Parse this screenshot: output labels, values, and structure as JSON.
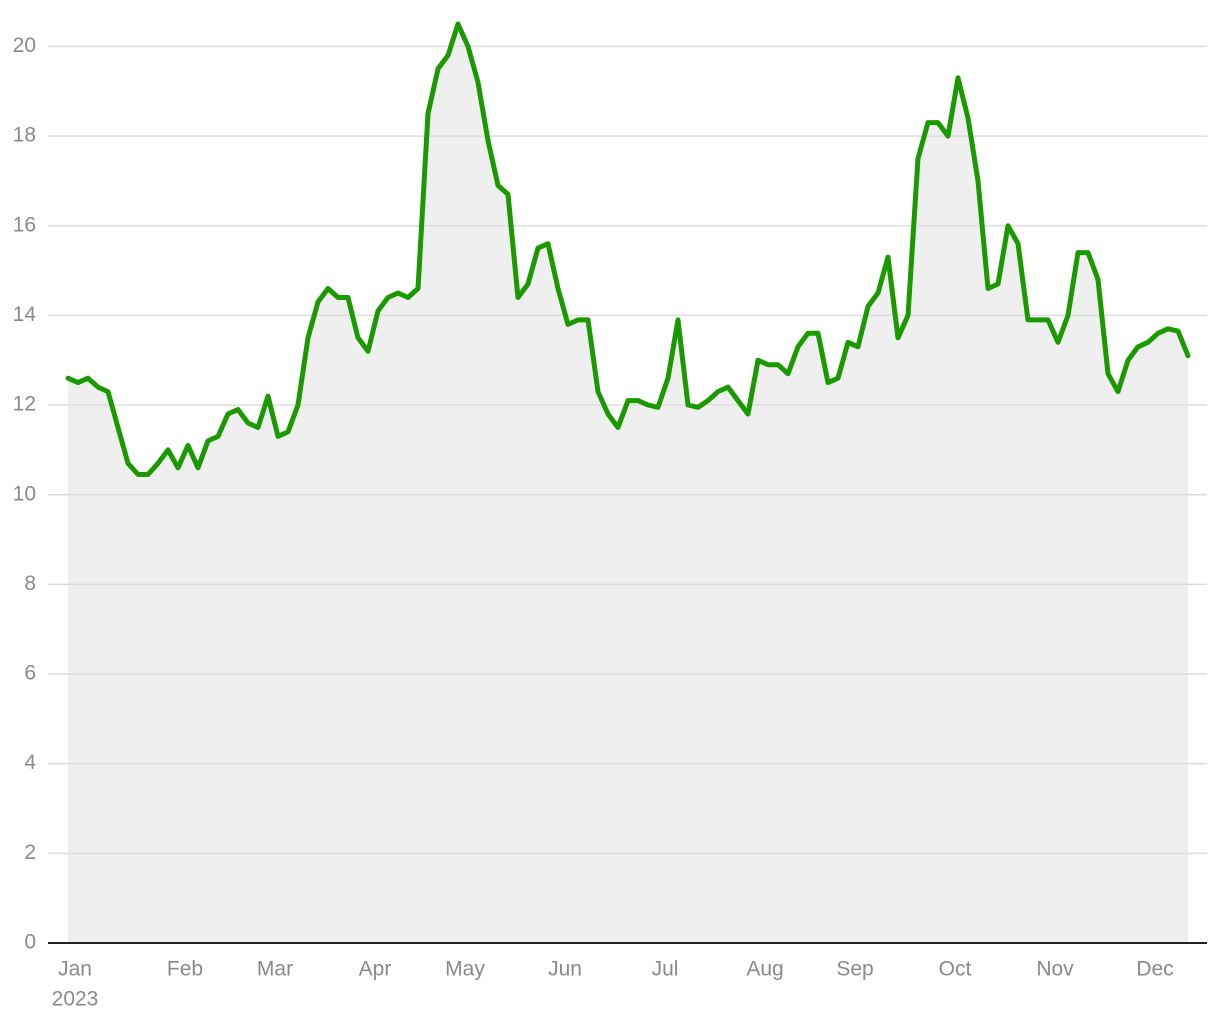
{
  "chart_data": {
    "type": "area-line",
    "categories": [
      "Jan",
      null,
      null,
      null,
      null,
      null,
      null,
      null,
      null,
      null,
      null,
      "Feb",
      null,
      null,
      null,
      null,
      null,
      null,
      null,
      null,
      "Mar",
      null,
      null,
      null,
      null,
      null,
      null,
      null,
      null,
      null,
      "Apr",
      null,
      null,
      null,
      null,
      null,
      null,
      null,
      null,
      "May",
      null,
      null,
      null,
      null,
      null,
      null,
      null,
      null,
      null,
      "Jun",
      null,
      null,
      null,
      null,
      null,
      null,
      null,
      null,
      null,
      "Jul",
      null,
      null,
      null,
      null,
      null,
      null,
      null,
      null,
      null,
      "Aug",
      null,
      null,
      null,
      null,
      null,
      null,
      null,
      null,
      "Sep",
      null,
      null,
      null,
      null,
      null,
      null,
      null,
      null,
      null,
      "Oct",
      null,
      null,
      null,
      null,
      null,
      null,
      null,
      null,
      null,
      "Nov",
      null,
      null,
      null,
      null,
      null,
      null,
      null,
      null,
      null,
      "Dec",
      null,
      null,
      null,
      null
    ],
    "year_label": "2023",
    "color": "#1a9a00",
    "fill": "#efefef",
    "values": [
      12.6,
      12.5,
      12.6,
      12.4,
      12.3,
      11.5,
      10.7,
      10.45,
      10.45,
      10.7,
      11.0,
      10.6,
      11.1,
      10.6,
      11.2,
      11.3,
      11.8,
      11.9,
      11.6,
      11.5,
      12.2,
      11.3,
      11.4,
      12.0,
      13.5,
      14.3,
      14.6,
      14.4,
      14.4,
      13.5,
      13.2,
      14.1,
      14.4,
      14.5,
      14.4,
      14.6,
      18.5,
      19.5,
      19.8,
      20.5,
      20.0,
      19.2,
      17.9,
      16.9,
      16.7,
      14.4,
      14.7,
      15.5,
      15.6,
      14.6,
      13.8,
      13.9,
      13.9,
      12.3,
      11.8,
      11.5,
      12.1,
      12.1,
      12.0,
      11.95,
      12.6,
      13.9,
      12.0,
      11.95,
      12.1,
      12.3,
      12.4,
      12.1,
      11.8,
      13.0,
      12.9,
      12.9,
      12.7,
      13.3,
      13.6,
      13.6,
      12.5,
      12.6,
      13.4,
      13.3,
      14.2,
      14.5,
      15.3,
      13.5,
      14.0,
      17.5,
      18.3,
      18.3,
      18.0,
      19.3,
      18.4,
      17.0,
      14.6,
      14.7,
      16.0,
      15.6,
      13.9,
      13.9,
      13.9,
      13.4,
      14.0,
      15.4,
      15.4,
      14.8,
      12.7,
      12.3,
      13.0,
      13.3,
      13.4,
      13.6,
      13.7,
      13.65,
      13.1
    ],
    "ylim": [
      0,
      20.5
    ],
    "yticks": [
      0,
      2,
      4,
      6,
      8,
      10,
      12,
      14,
      16,
      18,
      20
    ],
    "grid": true
  }
}
